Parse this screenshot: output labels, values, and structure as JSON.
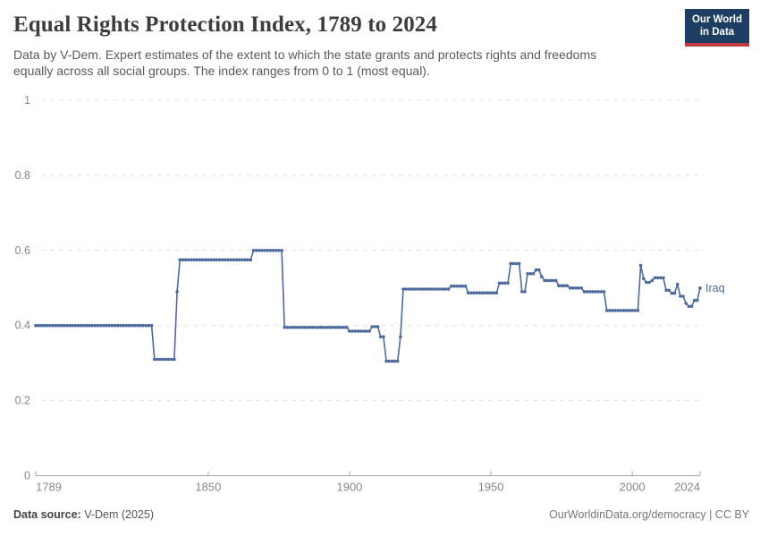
{
  "header": {
    "logo_line1": "Our World",
    "logo_line2": "in Data"
  },
  "chart_data": {
    "type": "line",
    "title": "Equal Rights Protection Index, 1789 to 2024",
    "subtitle": "Data by V-Dem. Expert estimates of the extent to which the state grants and protects rights and freedoms equally across all social groups. The index ranges from 0 to 1 (most equal).",
    "xlim": [
      1789,
      2024
    ],
    "ylim": [
      0,
      1
    ],
    "x_ticks": [
      1789,
      1850,
      1900,
      1950,
      2000,
      2024
    ],
    "y_ticks": [
      0,
      0.2,
      0.4,
      0.6,
      0.8,
      1
    ],
    "y_tick_labels": [
      "0",
      "0.2",
      "0.4",
      "0.6",
      "0.8",
      "1"
    ],
    "grid": "horizontal-dashed",
    "legend": "inline-series-end-label",
    "colors": {
      "grid": "#e0e0e0",
      "axis": "#a6a6a6",
      "tick_label": "#878787"
    },
    "series": [
      {
        "name": "Iraq",
        "color": "#4c6a9c",
        "segments_note": "[start_year, end_year, index_value] - one data point per year",
        "segments": [
          [
            1789,
            1830,
            0.4
          ],
          [
            1831,
            1838,
            0.31
          ],
          [
            1839,
            1839,
            0.49
          ],
          [
            1840,
            1865,
            0.575
          ],
          [
            1866,
            1876,
            0.6
          ],
          [
            1877,
            1899,
            0.395
          ],
          [
            1900,
            1907,
            0.385
          ],
          [
            1908,
            1910,
            0.397
          ],
          [
            1911,
            1912,
            0.37
          ],
          [
            1913,
            1917,
            0.305
          ],
          [
            1918,
            1918,
            0.37
          ],
          [
            1919,
            1935,
            0.497
          ],
          [
            1936,
            1941,
            0.505
          ],
          [
            1942,
            1952,
            0.487
          ],
          [
            1953,
            1956,
            0.513
          ],
          [
            1957,
            1960,
            0.565
          ],
          [
            1961,
            1962,
            0.49
          ],
          [
            1963,
            1965,
            0.538
          ],
          [
            1966,
            1967,
            0.548
          ],
          [
            1968,
            1968,
            0.53
          ],
          [
            1969,
            1973,
            0.52
          ],
          [
            1974,
            1977,
            0.506
          ],
          [
            1978,
            1982,
            0.5
          ],
          [
            1983,
            1990,
            0.49
          ],
          [
            1991,
            2002,
            0.44
          ],
          [
            2003,
            2003,
            0.56
          ],
          [
            2004,
            2004,
            0.525
          ],
          [
            2005,
            2006,
            0.515
          ],
          [
            2007,
            2007,
            0.52
          ],
          [
            2008,
            2011,
            0.527
          ],
          [
            2012,
            2013,
            0.494
          ],
          [
            2014,
            2015,
            0.486
          ],
          [
            2016,
            2016,
            0.51
          ],
          [
            2017,
            2018,
            0.478
          ],
          [
            2019,
            2019,
            0.459
          ],
          [
            2020,
            2021,
            0.451
          ],
          [
            2022,
            2023,
            0.467
          ],
          [
            2024,
            2024,
            0.5
          ]
        ]
      }
    ]
  },
  "footer": {
    "source_label": "Data source:",
    "source_value": "V-Dem (2025)",
    "right_text": "OurWorldinData.org/democracy | CC BY"
  }
}
